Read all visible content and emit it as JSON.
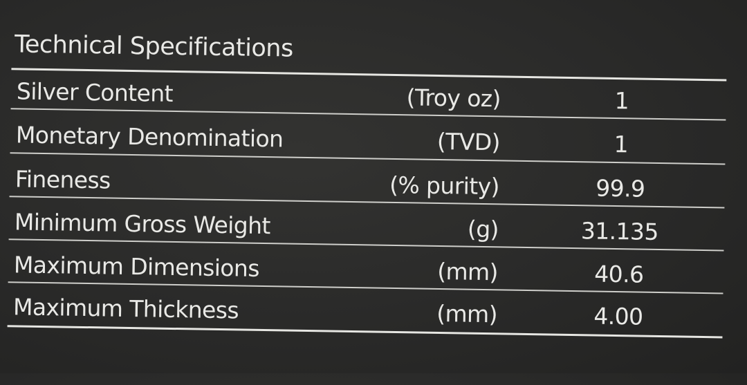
{
  "title": "Technical Specifications",
  "rows": [
    {
      "label": "Silver Content",
      "unit": "(Troy oz)",
      "value": "1"
    },
    {
      "label": "Monetary Denomination",
      "unit": "(TVD)",
      "value": "1"
    },
    {
      "label": "Fineness",
      "unit": "(% purity)",
      "value": "99.9"
    },
    {
      "label": "Minimum Gross Weight",
      "unit": "(g)",
      "value": "31.135"
    },
    {
      "label": "Maximum Dimensions",
      "unit": "(mm)",
      "value": "40.6"
    },
    {
      "label": "Maximum Thickness",
      "unit": "(mm)",
      "value": "4.00"
    }
  ]
}
